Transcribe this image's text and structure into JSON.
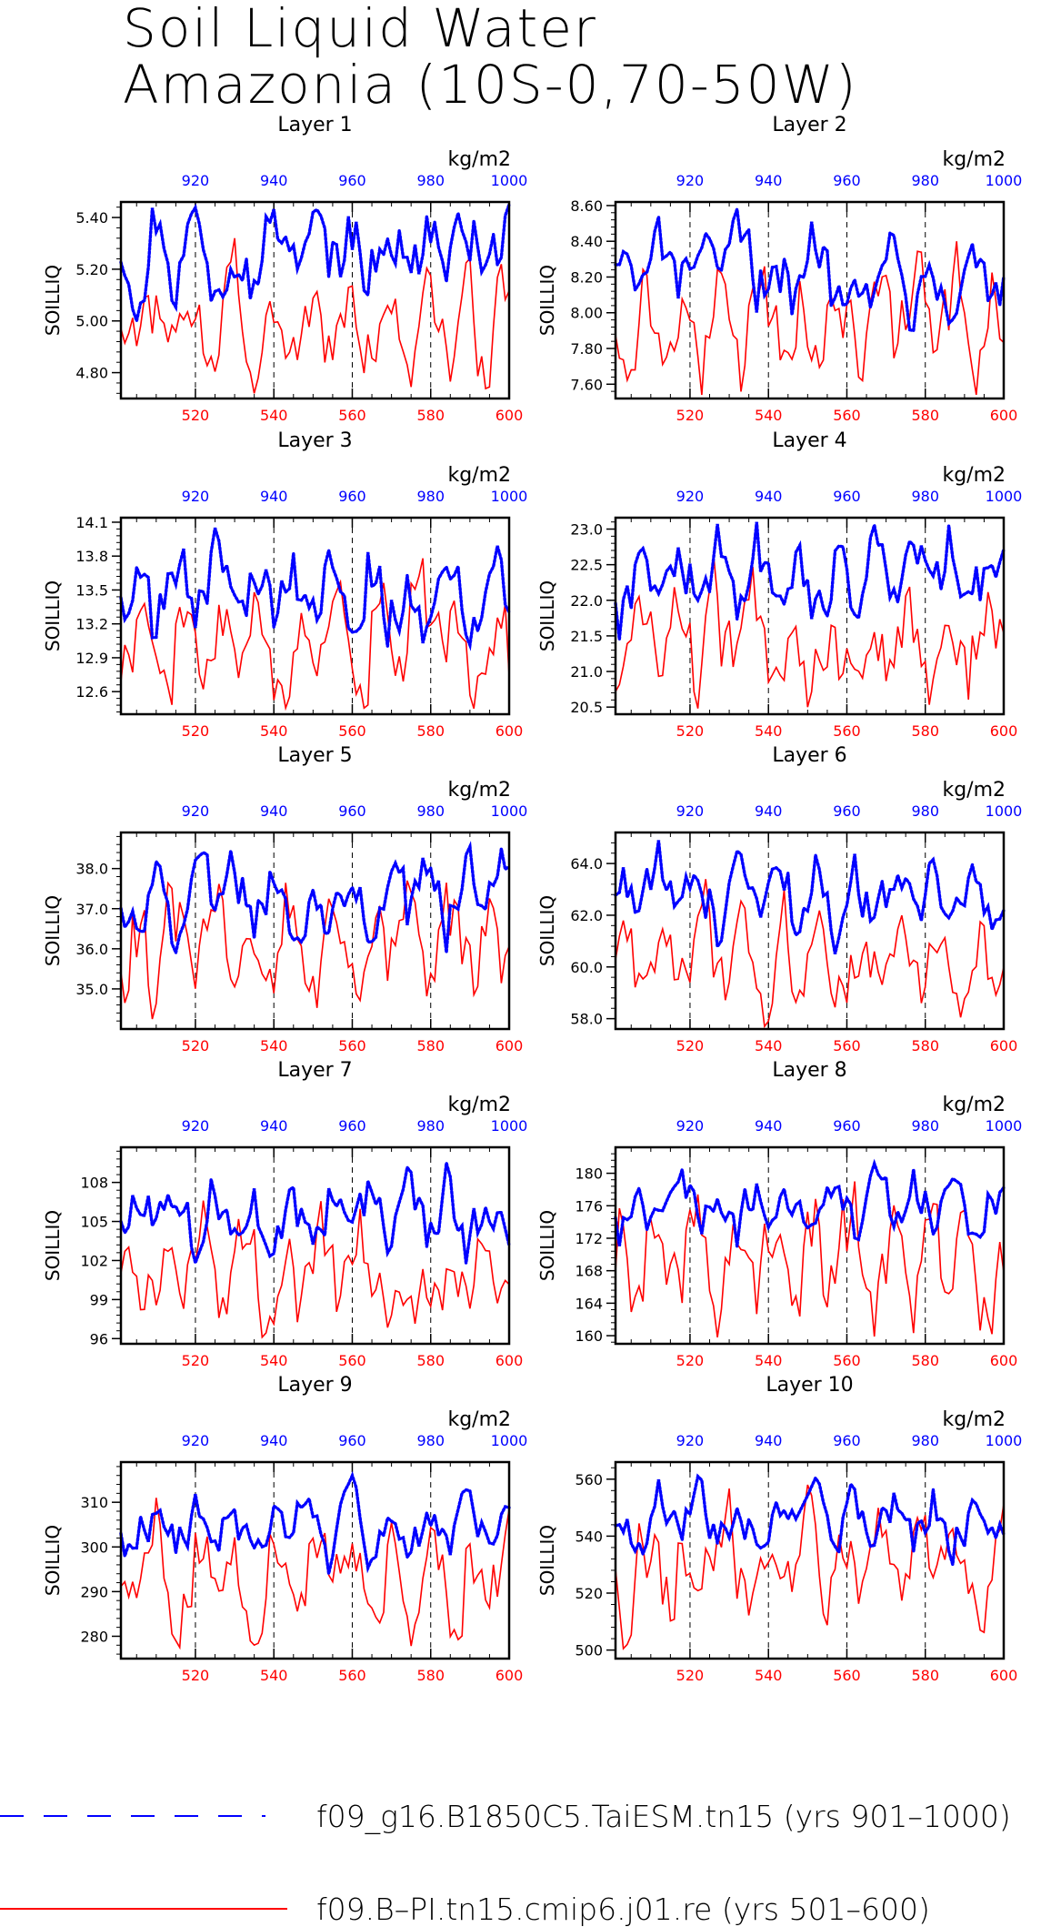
{
  "title": {
    "line1": "Soil Liquid Water",
    "line2": "Amazonia (10S-0,70-50W)"
  },
  "colors": {
    "control": "#0000ff",
    "test": "#ff0000",
    "axis": "#000000"
  },
  "chart_data": {
    "type": "line",
    "top_axis": {
      "label": "kg/m2",
      "ticks": [
        920,
        940,
        960,
        980,
        1000
      ],
      "range": [
        901,
        1000
      ]
    },
    "bottom_axis": {
      "ticks": [
        520,
        540,
        560,
        580,
        600
      ],
      "range": [
        501,
        600
      ]
    },
    "ylabel": "SOILLIQ",
    "series": [
      {
        "name": "f09_g16.B1850C5.TaiESM.tn15 (yrs 901–1000)",
        "axis": "top",
        "style": "dashed",
        "color": "#0000ff"
      },
      {
        "name": "f09.B–PI.tn15.cmip6.j01.re (yrs 501–600)",
        "axis": "bottom",
        "style": "solid",
        "color": "#ff0000"
      }
    ],
    "panels": [
      {
        "title": "Layer 1",
        "yticks": [
          "4.80",
          "5.00",
          "5.20",
          "5.40"
        ],
        "ylim": [
          4.7,
          5.46
        ],
        "blue_range": [
          5.0,
          5.45
        ],
        "red_range": [
          4.72,
          5.32
        ]
      },
      {
        "title": "Layer 2",
        "yticks": [
          "7.60",
          "7.80",
          "8.00",
          "8.20",
          "8.40",
          "8.60"
        ],
        "ylim": [
          7.52,
          8.62
        ],
        "blue_range": [
          7.9,
          8.58
        ],
        "red_range": [
          7.54,
          8.4
        ]
      },
      {
        "title": "Layer 3",
        "yticks": [
          "12.6",
          "12.9",
          "13.2",
          "13.5",
          "13.8",
          "14.1"
        ],
        "ylim": [
          12.4,
          14.14
        ],
        "blue_range": [
          13.0,
          14.05
        ],
        "red_range": [
          12.45,
          13.78
        ]
      },
      {
        "title": "Layer 4",
        "yticks": [
          "20.5",
          "21.0",
          "21.5",
          "22.0",
          "22.5",
          "23.0"
        ],
        "ylim": [
          20.4,
          23.16
        ],
        "blue_range": [
          21.45,
          23.1
        ],
        "red_range": [
          20.48,
          22.65
        ]
      },
      {
        "title": "Layer 5",
        "yticks": [
          "35.0",
          "36.0",
          "37.0",
          "38.0"
        ],
        "ylim": [
          34.0,
          38.9
        ],
        "blue_range": [
          35.9,
          38.55
        ],
        "red_range": [
          34.25,
          37.7
        ]
      },
      {
        "title": "Layer 6",
        "yticks": [
          "58.0",
          "60.0",
          "62.0",
          "64.0"
        ],
        "ylim": [
          57.6,
          65.2
        ],
        "blue_range": [
          60.5,
          64.9
        ],
        "red_range": [
          57.7,
          63.4
        ]
      },
      {
        "title": "Layer 7",
        "yticks": [
          "96",
          "99",
          "102",
          "105",
          "108"
        ],
        "ylim": [
          95.6,
          110.7
        ],
        "blue_range": [
          101.8,
          109.5
        ],
        "red_range": [
          96.1,
          106.6
        ]
      },
      {
        "title": "Layer 8",
        "yticks": [
          "160",
          "164",
          "168",
          "172",
          "176",
          "180"
        ],
        "ylim": [
          159.0,
          183.2
        ],
        "blue_range": [
          171.0,
          181.2
        ],
        "red_range": [
          159.8,
          179.0
        ]
      },
      {
        "title": "Layer 9",
        "yticks": [
          "280",
          "290",
          "300",
          "310"
        ],
        "ylim": [
          275.0,
          319.0
        ],
        "blue_range": [
          294.0,
          316.0
        ],
        "red_range": [
          277.5,
          311.0
        ]
      },
      {
        "title": "Layer 10",
        "yticks": [
          "500",
          "520",
          "540",
          "560"
        ],
        "ylim": [
          497.0,
          566.0
        ],
        "blue_range": [
          530.0,
          561.0
        ],
        "red_range": [
          500.5,
          558.0
        ]
      }
    ]
  }
}
